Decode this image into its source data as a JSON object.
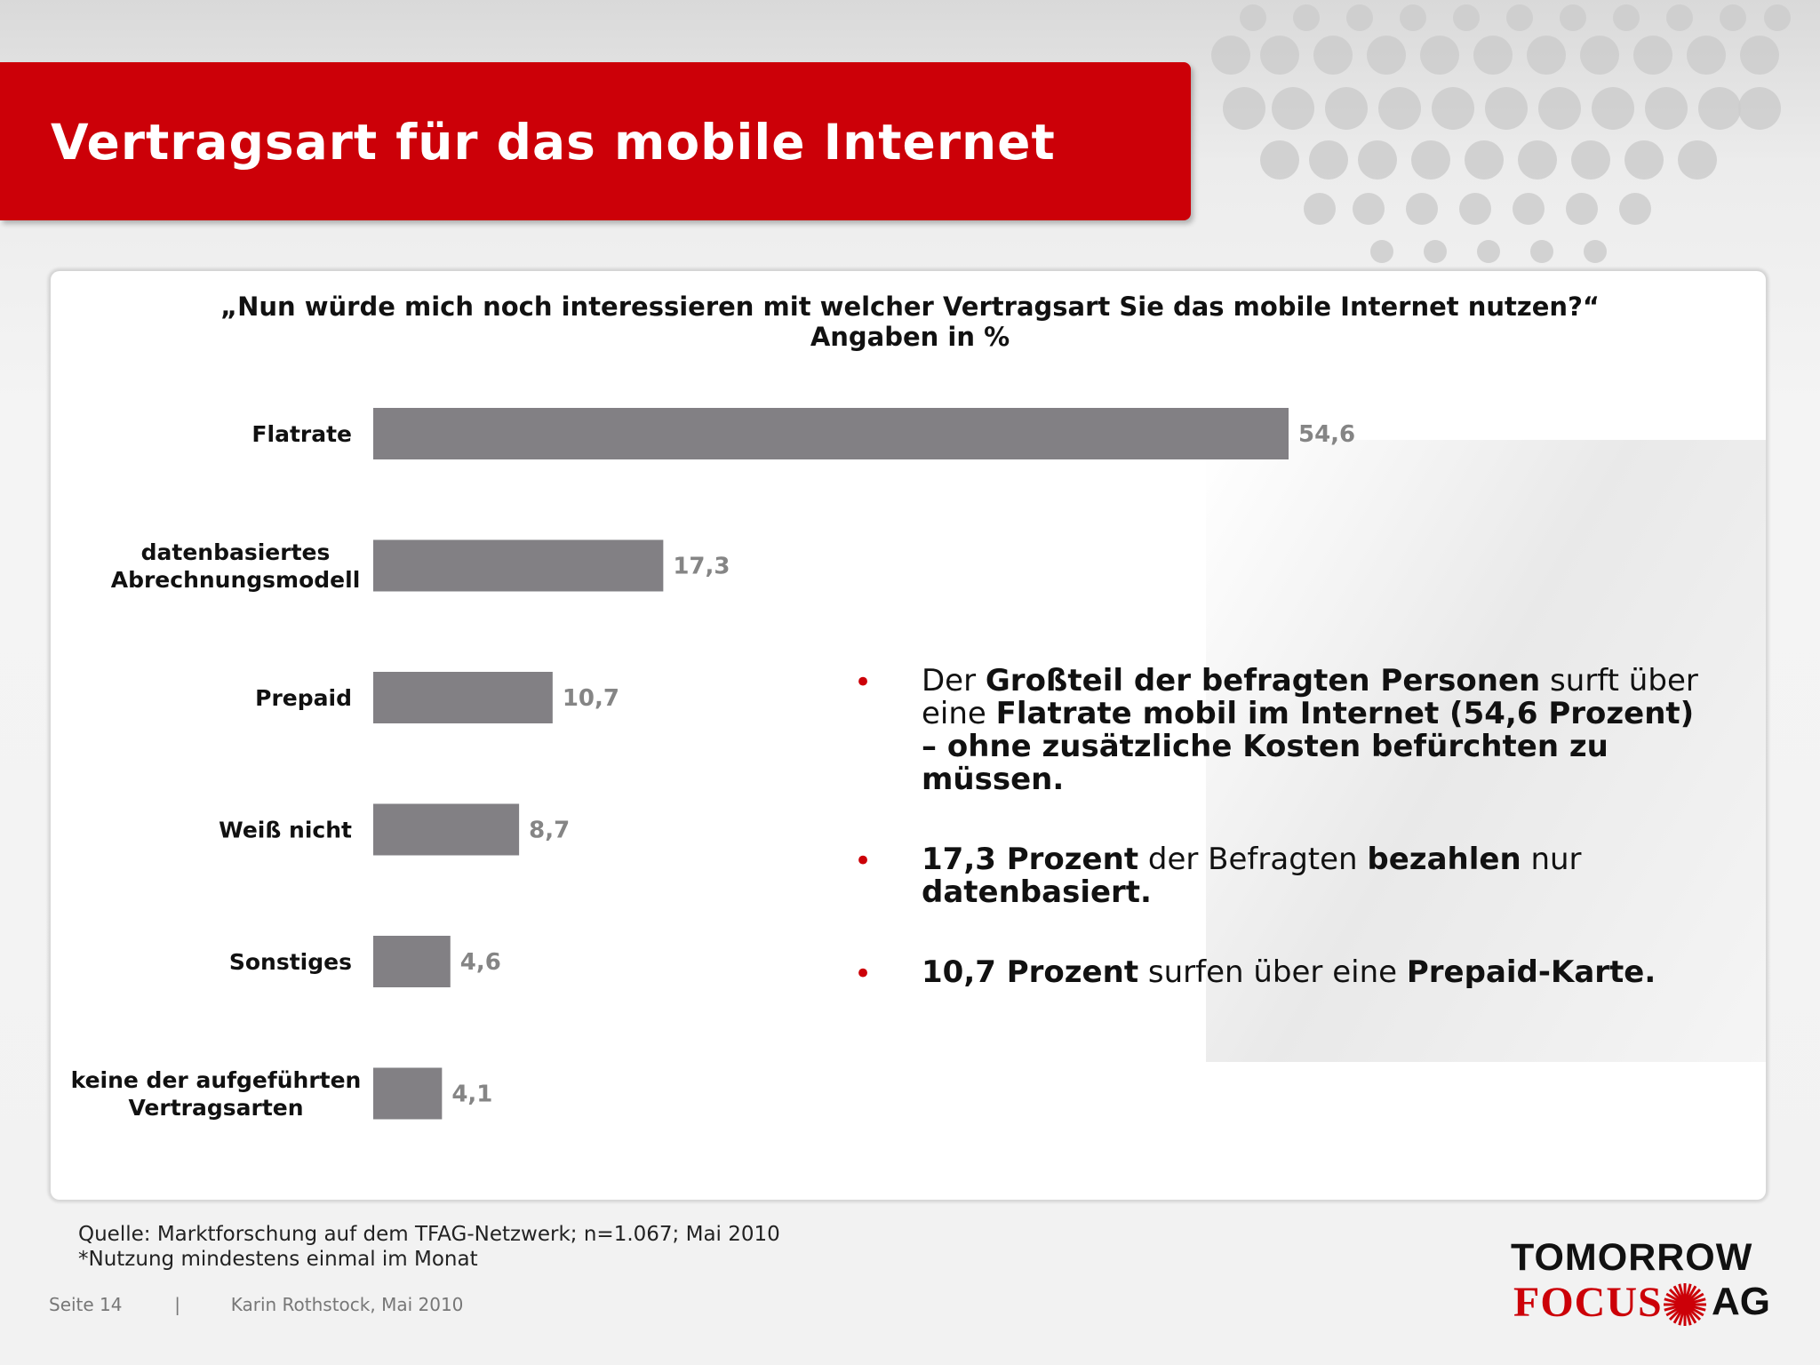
{
  "slide": {
    "title": "Vertragsart für das mobile Internet"
  },
  "chart_data": {
    "type": "bar",
    "orientation": "horizontal",
    "title": "„Nun würde mich noch interessieren mit welcher Vertragsart Sie das mobile Internet nutzen?“",
    "subtitle": "Angaben in %",
    "categories": [
      [
        "Flatrate"
      ],
      [
        "datenbasiertes",
        "Abrechnungsmodell"
      ],
      [
        "Prepaid"
      ],
      [
        "Weiß nicht"
      ],
      [
        "Sonstiges"
      ],
      [
        "keine der aufgeführten",
        "Vertragsarten"
      ]
    ],
    "values": [
      54.6,
      17.3,
      10.7,
      8.7,
      4.6,
      4.1
    ],
    "value_labels": [
      "54,6",
      "17,3",
      "10,7",
      "8,7",
      "4,6",
      "4,1"
    ],
    "xlim": [
      0,
      100
    ],
    "grid": false,
    "legend": "none",
    "bar_color": "#828084",
    "value_label_color": "#858585"
  },
  "bullets": [
    [
      {
        "t": "Der ",
        "b": false
      },
      {
        "t": "Großteil der befragten Personen",
        "b": true
      },
      {
        "t": " surft über eine ",
        "b": false
      },
      {
        "t": "Flatrate mobil im Internet (54,6 Prozent) – ohne zusätzliche Kosten befürchten zu müssen.",
        "b": true
      }
    ],
    [
      {
        "t": "17,3 Prozent",
        "b": true
      },
      {
        "t": " der Befragten ",
        "b": false
      },
      {
        "t": "bezahlen",
        "b": true
      },
      {
        "t": " nur ",
        "b": false
      },
      {
        "t": "datenbasiert.",
        "b": true
      }
    ],
    [
      {
        "t": "10,7 Prozent",
        "b": true
      },
      {
        "t": " surfen über eine ",
        "b": false
      },
      {
        "t": "Prepaid-Karte.",
        "b": true
      }
    ]
  ],
  "bullet_marker": "•",
  "source": {
    "line1": "Quelle: Marktforschung auf dem TFAG-Netzwerk; n=1.067; Mai 2010",
    "line2": "*Nutzung mindestens einmal im Monat"
  },
  "footer": {
    "page": "Seite 14",
    "separator": "|",
    "author": "Karin Rothstock, Mai 2010"
  },
  "logo": {
    "line1": "TOMORROW",
    "focus": "FOCUS",
    "ag": "AG",
    "brand_color": "#cc0008",
    "icon": "starburst-icon"
  },
  "colors": {
    "accent": "#cc0008"
  }
}
